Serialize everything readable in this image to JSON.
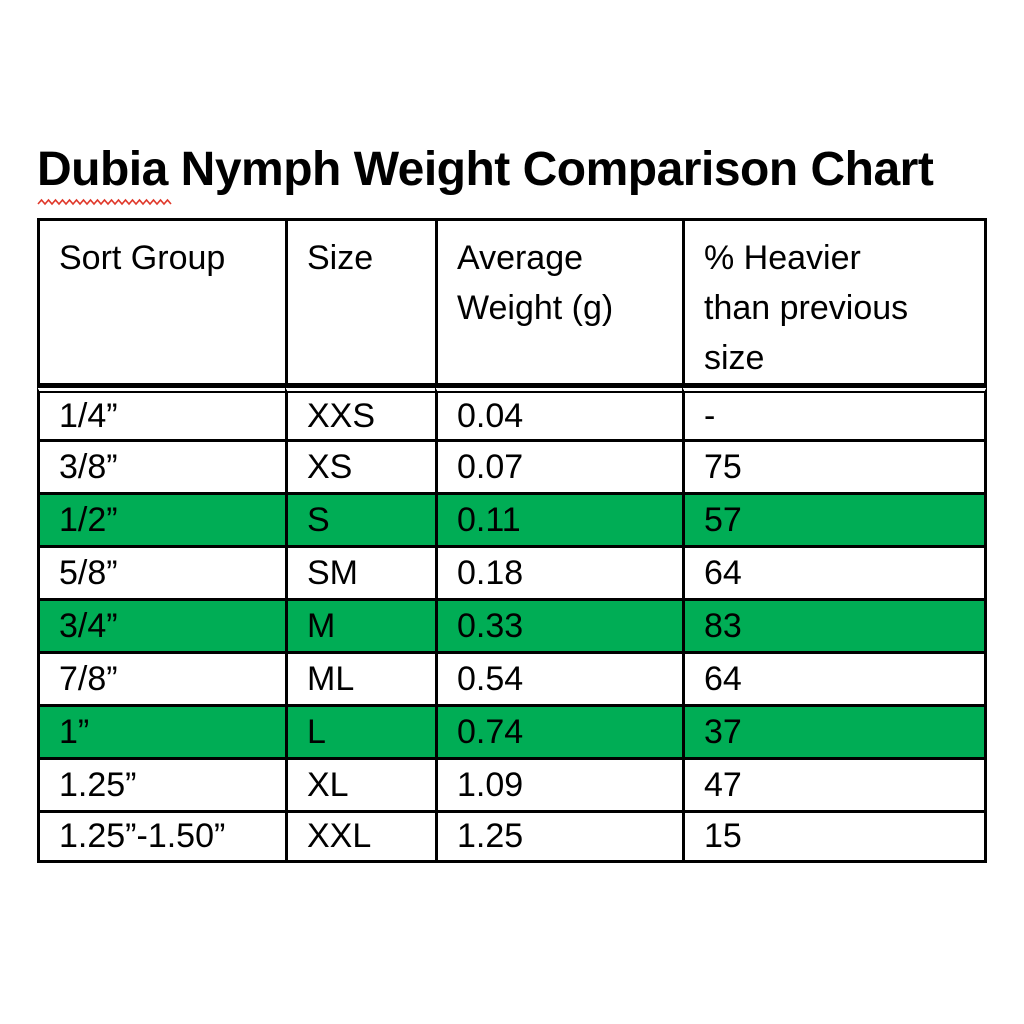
{
  "title": {
    "misspelled_word": "Dubia",
    "rest": " Nymph Weight Comparison Chart",
    "spellcheck_color": "#e0392b"
  },
  "table": {
    "columns": [
      "Sort Group",
      "Size",
      "Average\nWeight (g)",
      "% Heavier\nthan previous\nsize"
    ],
    "highlight_color": "#00AD55",
    "rows": [
      {
        "sort_group": "1/4”",
        "size": "XXS",
        "avg_weight": "0.04",
        "pct_heavier": "-",
        "highlighted": false
      },
      {
        "sort_group": "3/8”",
        "size": "XS",
        "avg_weight": "0.07",
        "pct_heavier": "75",
        "highlighted": false
      },
      {
        "sort_group": "1/2”",
        "size": "S",
        "avg_weight": "0.11",
        "pct_heavier": "57",
        "highlighted": true
      },
      {
        "sort_group": "5/8”",
        "size": "SM",
        "avg_weight": "0.18",
        "pct_heavier": "64",
        "highlighted": false
      },
      {
        "sort_group": "3/4”",
        "size": "M",
        "avg_weight": "0.33",
        "pct_heavier": "83",
        "highlighted": true
      },
      {
        "sort_group": "7/8”",
        "size": "ML",
        "avg_weight": "0.54",
        "pct_heavier": "64",
        "highlighted": false
      },
      {
        "sort_group": "1”",
        "size": "L",
        "avg_weight": "0.74",
        "pct_heavier": "37",
        "highlighted": true
      },
      {
        "sort_group": "1.25”",
        "size": "XL",
        "avg_weight": "1.09",
        "pct_heavier": "47",
        "highlighted": false
      },
      {
        "sort_group": "1.25”-1.50”",
        "size": "XXL",
        "avg_weight": "1.25",
        "pct_heavier": "15",
        "highlighted": false
      }
    ]
  }
}
